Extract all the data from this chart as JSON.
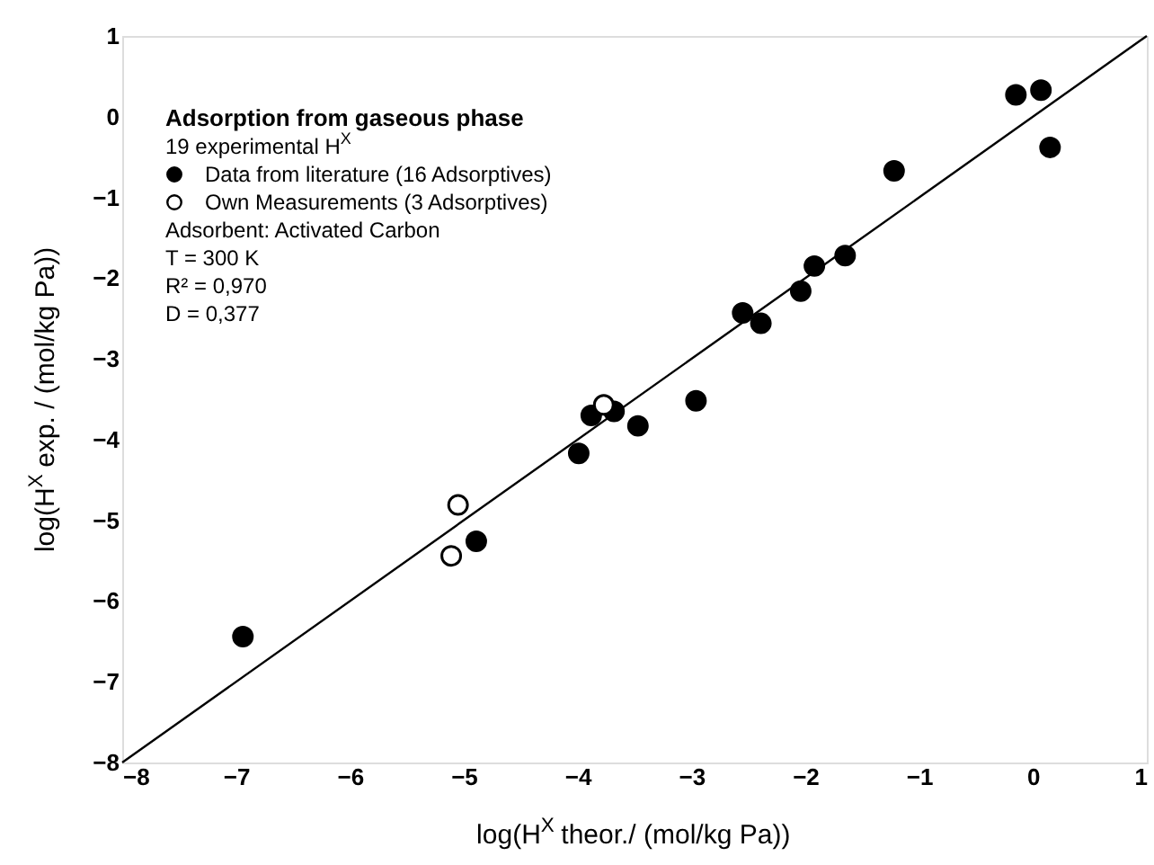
{
  "chart_data": {
    "type": "scatter",
    "xlabel": "log(H$^{X}$ theor./ (mol/kg Pa))",
    "ylabel": "log(H$^{X}$ exp. / (mol/kg Pa))",
    "xlim": [
      -8,
      1
    ],
    "ylim": [
      -8,
      1
    ],
    "xticks": [
      -8,
      -7,
      -6,
      -5,
      -4,
      -3,
      -2,
      -1,
      0,
      1
    ],
    "yticks": [
      -8,
      -7,
      -6,
      -5,
      -4,
      -3,
      -2,
      -1,
      0,
      1
    ],
    "grid": false,
    "legend": "top left",
    "marker": "circle",
    "annotations": [
      "Adsorption from gaseous phase",
      "19 experimental H$^{X}$",
      "Adsorbent: Activated Carbon",
      "T = 300 K",
      "R² = 0,970",
      "D = 0,377"
    ],
    "series": [
      {
        "name": "Data from literature (16 Adsorptives)",
        "color": "#000000",
        "x": [
          -6.94,
          -4.89,
          -3.99,
          -3.88,
          -3.68,
          -3.47,
          -2.96,
          -2.55,
          -2.39,
          -2.04,
          -1.92,
          -1.65,
          -1.22,
          -0.15,
          0.07,
          0.15
        ],
        "values": [
          -6.44,
          -5.26,
          -4.17,
          -3.7,
          -3.65,
          -3.83,
          -3.52,
          -2.43,
          -2.56,
          -2.16,
          -1.85,
          -1.72,
          -0.67,
          0.27,
          0.33,
          -0.38
        ]
      },
      {
        "name": "Own Measurements (3 Adsorptives)",
        "color": "#ffffff",
        "x": [
          -5.05,
          -5.11,
          -3.77
        ],
        "values": [
          -4.81,
          -5.44,
          -3.57
        ]
      },
      {
        "type": "line",
        "color": "#000000",
        "marker": "none",
        "line_style": "solid",
        "x": [
          -8,
          1
        ],
        "values": [
          -8,
          1
        ]
      }
    ]
  }
}
